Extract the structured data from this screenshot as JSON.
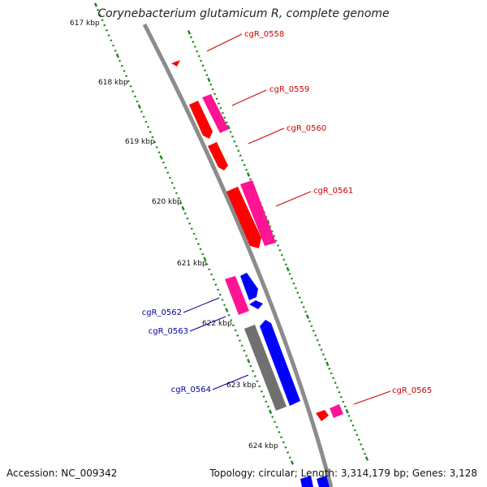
{
  "title": "Corynebacterium glutamicum R, complete genome",
  "footer": {
    "accession": "Accession: NC_009342",
    "summary": "Topology: circular; Length: 3,314,179 bp; Genes: 3,128"
  },
  "colors": {
    "forward_gene": "#ff0000",
    "forward_secondary": "#ff1493",
    "reverse_gene": "#0000ff",
    "other_gene": "#707070",
    "backbone": "#8c8c8c",
    "tick": "#1e8c1e",
    "forward_label": "#cc0000",
    "reverse_label": "#000099"
  },
  "ticks": [
    "617 kbp",
    "618 kbp",
    "619 kbp",
    "620 kbp",
    "621 kbp",
    "622 kbp",
    "623 kbp",
    "624 kbp"
  ],
  "genes": [
    {
      "name": "cgR_0558",
      "strand": "forward"
    },
    {
      "name": "cgR_0559",
      "strand": "forward"
    },
    {
      "name": "cgR_0560",
      "strand": "forward"
    },
    {
      "name": "cgR_0561",
      "strand": "forward"
    },
    {
      "name": "cgR_0562",
      "strand": "reverse"
    },
    {
      "name": "cgR_0563",
      "strand": "reverse"
    },
    {
      "name": "cgR_0564",
      "strand": "reverse"
    },
    {
      "name": "cgR_0565",
      "strand": "forward"
    }
  ]
}
